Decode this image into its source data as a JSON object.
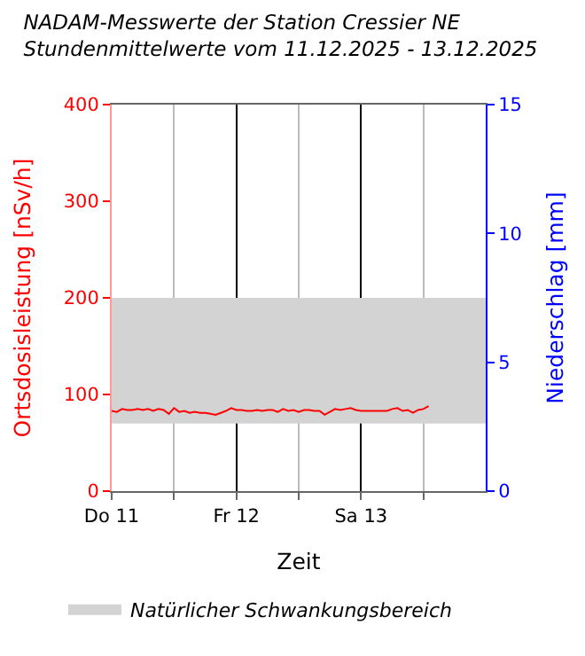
{
  "chart_data": {
    "type": "line",
    "title": "NADAM-Messwerte der Station Cressier NE",
    "subtitle": "Stundenmittelwerte vom 11.12.2025 - 13.12.2025",
    "xlabel": "Zeit",
    "ylabel": "Ortsdosisleistung [nSv/h]",
    "y2label": "Niederschlag [mm]",
    "x": [
      "2025-12-11T00:00",
      "2025-12-11T01:00",
      "2025-12-11T02:00",
      "2025-12-11T03:00",
      "2025-12-11T04:00",
      "2025-12-11T05:00",
      "2025-12-11T06:00",
      "2025-12-11T07:00",
      "2025-12-11T08:00",
      "2025-12-11T09:00",
      "2025-12-11T10:00",
      "2025-12-11T11:00",
      "2025-12-11T12:00",
      "2025-12-11T13:00",
      "2025-12-11T14:00",
      "2025-12-11T15:00",
      "2025-12-11T16:00",
      "2025-12-11T17:00",
      "2025-12-11T18:00",
      "2025-12-11T19:00",
      "2025-12-11T20:00",
      "2025-12-11T21:00",
      "2025-12-11T22:00",
      "2025-12-11T23:00",
      "2025-12-12T00:00",
      "2025-12-12T01:00",
      "2025-12-12T02:00",
      "2025-12-12T03:00",
      "2025-12-12T04:00",
      "2025-12-12T05:00",
      "2025-12-12T06:00",
      "2025-12-12T07:00",
      "2025-12-12T08:00",
      "2025-12-12T09:00",
      "2025-12-12T10:00",
      "2025-12-12T11:00",
      "2025-12-12T12:00",
      "2025-12-12T13:00",
      "2025-12-12T14:00",
      "2025-12-12T15:00",
      "2025-12-12T16:00",
      "2025-12-12T17:00",
      "2025-12-12T18:00",
      "2025-12-12T19:00",
      "2025-12-12T20:00",
      "2025-12-12T21:00",
      "2025-12-12T22:00",
      "2025-12-12T23:00",
      "2025-12-13T00:00",
      "2025-12-13T01:00",
      "2025-12-13T02:00",
      "2025-12-13T03:00",
      "2025-12-13T04:00",
      "2025-12-13T05:00",
      "2025-12-13T06:00",
      "2025-12-13T07:00",
      "2025-12-13T08:00",
      "2025-12-13T09:00",
      "2025-12-13T10:00",
      "2025-12-13T11:00",
      "2025-12-13T12:00",
      "2025-12-13T13:00"
    ],
    "series": [
      {
        "color": "#ff0000",
        "values": [
          83,
          82,
          85,
          84,
          84,
          85,
          84,
          85,
          83,
          85,
          84,
          80,
          86,
          82,
          83,
          81,
          82,
          81,
          81,
          80,
          79,
          81,
          83,
          86,
          84,
          84,
          83,
          83,
          84,
          83,
          84,
          84,
          82,
          85,
          83,
          84,
          82,
          84,
          84,
          83,
          83,
          79,
          82,
          85,
          84,
          85,
          86,
          84,
          83,
          83,
          83,
          83,
          83,
          83,
          85,
          86,
          83,
          84,
          81,
          84,
          85,
          88
        ]
      }
    ],
    "xlim": [
      "2025-12-11T00:00",
      "2025-12-14T00:00"
    ],
    "xticks": [
      {
        "value": "2025-12-11T00:00",
        "label": "Do 11"
      },
      {
        "value": "2025-12-11T12:00",
        "label": null
      },
      {
        "value": "2025-12-12T00:00",
        "label": "Fr 12"
      },
      {
        "value": "2025-12-12T12:00",
        "label": null
      },
      {
        "value": "2025-12-13T00:00",
        "label": "Sa 13"
      },
      {
        "value": "2025-12-13T12:00",
        "label": null
      }
    ],
    "ylim": [
      0,
      400
    ],
    "yticks": [
      0,
      100,
      200,
      300,
      400
    ],
    "y2lim": [
      0,
      15
    ],
    "y2ticks": [
      0,
      5,
      10,
      15
    ],
    "bands": [
      {
        "axis": "y",
        "from": 70,
        "to": 200,
        "label": "Natürlicher Schwankungsbereich",
        "color": "#d3d3d3"
      }
    ],
    "grid": "x",
    "legend": "bottom",
    "marker": "none",
    "line_style": "solid"
  }
}
